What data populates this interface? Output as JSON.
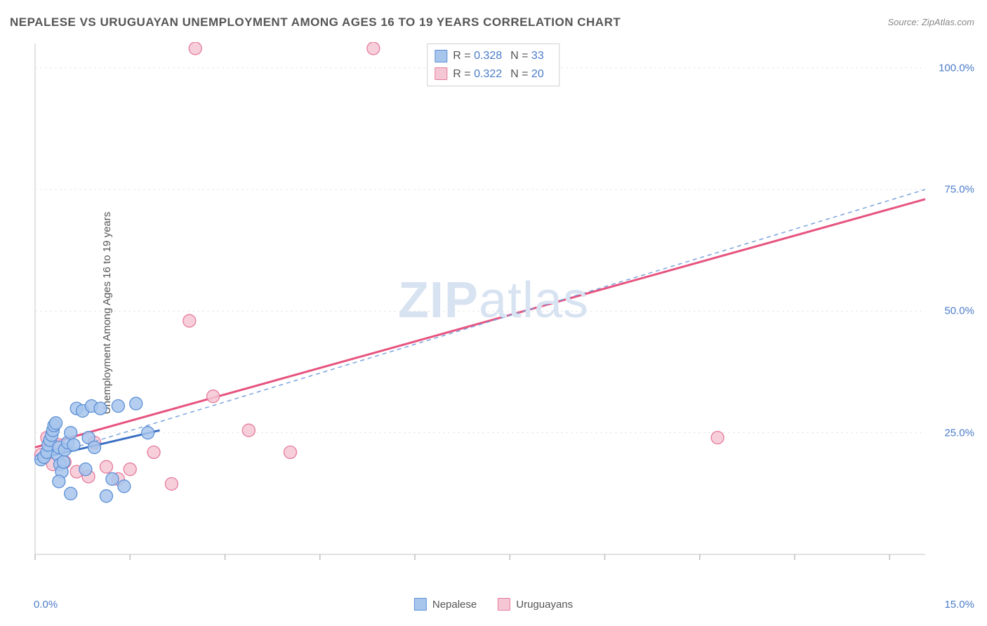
{
  "title": "NEPALESE VS URUGUAYAN UNEMPLOYMENT AMONG AGES 16 TO 19 YEARS CORRELATION CHART",
  "source": "Source: ZipAtlas.com",
  "y_axis_label": "Unemployment Among Ages 16 to 19 years",
  "watermark_a": "ZIP",
  "watermark_b": "atlas",
  "chart": {
    "type": "scatter",
    "background_color": "#ffffff",
    "plot_border_color": "#d9d9d9",
    "grid_color": "#e8e8e8",
    "tick_color": "#bfbfbf",
    "axis_label_color": "#4a7bc8",
    "xlim": [
      0,
      15
    ],
    "ylim": [
      0,
      105
    ],
    "xticks": [
      0,
      1.6,
      3.2,
      4.8,
      6.4,
      8.0,
      9.6,
      11.2,
      12.8,
      14.4
    ],
    "yticks": [
      25,
      50,
      75,
      100
    ],
    "xtick_labels": {
      "0": "0.0%",
      "15": "15.0%"
    },
    "ytick_labels": {
      "25": "25.0%",
      "50": "50.0%",
      "75": "75.0%",
      "100": "100.0%"
    },
    "series": [
      {
        "name": "Nepalese",
        "marker_fill": "#a8c6ec",
        "marker_stroke": "#5b8fd6",
        "marker_radius": 9,
        "marker_opacity": 0.85,
        "line_color": "#3a6fc4",
        "dash_color": "#7ba3dd",
        "r": "0.328",
        "n": "33",
        "trend_solid": {
          "x1": 0,
          "y1": 19.5,
          "x2": 2.1,
          "y2": 25.5
        },
        "trend_dash": {
          "x1": 0,
          "y1": 19.5,
          "x2": 15,
          "y2": 75.0
        },
        "points": [
          [
            0.1,
            19.5
          ],
          [
            0.15,
            20.0
          ],
          [
            0.2,
            21.0
          ],
          [
            0.22,
            22.5
          ],
          [
            0.25,
            23.5
          ],
          [
            0.28,
            24.5
          ],
          [
            0.3,
            25.5
          ],
          [
            0.32,
            26.5
          ],
          [
            0.35,
            27.0
          ],
          [
            0.38,
            20.5
          ],
          [
            0.4,
            22.0
          ],
          [
            0.42,
            18.5
          ],
          [
            0.45,
            17.0
          ],
          [
            0.48,
            19.0
          ],
          [
            0.5,
            21.5
          ],
          [
            0.55,
            23.0
          ],
          [
            0.6,
            25.0
          ],
          [
            0.65,
            22.5
          ],
          [
            0.7,
            30.0
          ],
          [
            0.8,
            29.5
          ],
          [
            0.85,
            17.5
          ],
          [
            0.9,
            24.0
          ],
          [
            0.95,
            30.5
          ],
          [
            1.0,
            22.0
          ],
          [
            1.1,
            30.0
          ],
          [
            1.2,
            12.0
          ],
          [
            1.3,
            15.5
          ],
          [
            1.4,
            30.5
          ],
          [
            1.5,
            14.0
          ],
          [
            1.7,
            31.0
          ],
          [
            1.9,
            25.0
          ],
          [
            0.6,
            12.5
          ],
          [
            0.4,
            15.0
          ]
        ]
      },
      {
        "name": "Uruguayans",
        "marker_fill": "#f5c7d4",
        "marker_stroke": "#e67a9c",
        "marker_radius": 9,
        "marker_opacity": 0.85,
        "line_color": "#e6537e",
        "dash_color": "#f2a5be",
        "r": "0.322",
        "n": "20",
        "trend_solid": {
          "x1": 0,
          "y1": 22.0,
          "x2": 15,
          "y2": 73.0
        },
        "trend_dash": {
          "x1": 0,
          "y1": 22.0,
          "x2": 15,
          "y2": 73.0
        },
        "points": [
          [
            0.1,
            20.5
          ],
          [
            0.2,
            24.0
          ],
          [
            0.3,
            18.5
          ],
          [
            0.4,
            22.5
          ],
          [
            0.5,
            19.0
          ],
          [
            0.7,
            17.0
          ],
          [
            0.9,
            16.0
          ],
          [
            1.0,
            23.0
          ],
          [
            1.2,
            18.0
          ],
          [
            1.4,
            15.5
          ],
          [
            1.6,
            17.5
          ],
          [
            2.0,
            21.0
          ],
          [
            2.3,
            14.5
          ],
          [
            2.6,
            48.0
          ],
          [
            2.7,
            104.0
          ],
          [
            3.0,
            32.5
          ],
          [
            3.6,
            25.5
          ],
          [
            4.3,
            21.0
          ],
          [
            5.7,
            104.0
          ],
          [
            11.5,
            24.0
          ]
        ]
      }
    ],
    "legend_bottom": [
      {
        "label": "Nepalese",
        "fill": "#a8c6ec",
        "stroke": "#5b8fd6"
      },
      {
        "label": "Uruguayans",
        "fill": "#f5c7d4",
        "stroke": "#e67a9c"
      }
    ]
  }
}
